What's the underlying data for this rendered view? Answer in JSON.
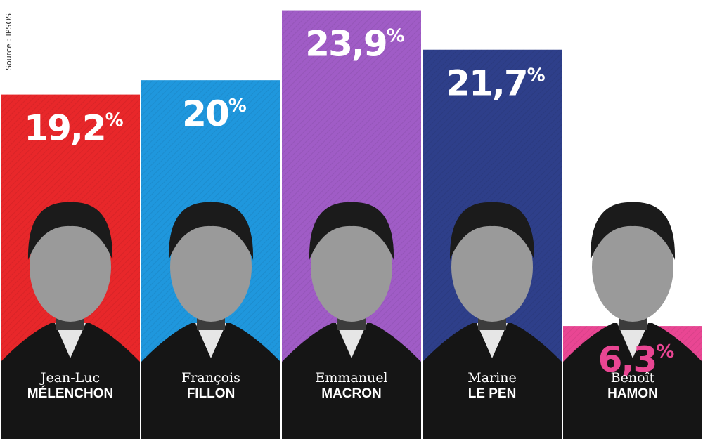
{
  "source": "Source : IPSOS",
  "chart_data": {
    "type": "bar",
    "categories": [
      "Jean-Luc MÉLENCHON",
      "François FILLON",
      "Emmanuel MACRON",
      "Marine LE PEN",
      "Benoît HAMON"
    ],
    "values": [
      19.2,
      20,
      23.9,
      21.7,
      6.3
    ],
    "value_labels": [
      "19,2",
      "20",
      "23,9",
      "21,7",
      "6,3"
    ],
    "percent_sign": "%",
    "first_names": [
      "Jean-Luc",
      "François",
      "Emmanuel",
      "Marine",
      "Benoît"
    ],
    "last_names": [
      "MÉLENCHON",
      "FILLON",
      "MACRON",
      "LE PEN",
      "HAMON"
    ],
    "colors": [
      "#e8272a",
      "#1f97dd",
      "#a05cc6",
      "#2e3f8a",
      "#e94693"
    ],
    "label_colors": [
      "#ffffff",
      "#ffffff",
      "#ffffff",
      "#ffffff",
      "#e94693"
    ],
    "ylim": [
      0,
      24
    ],
    "grid": false,
    "legend": "none"
  }
}
